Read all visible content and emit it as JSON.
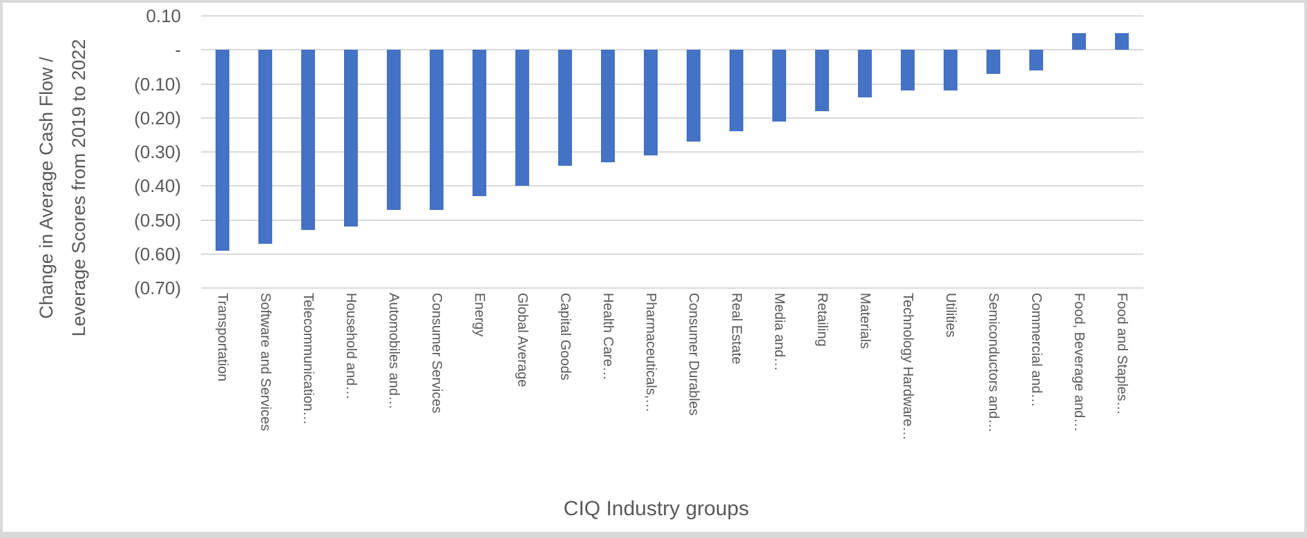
{
  "chart_data": {
    "type": "bar",
    "title": "",
    "xlabel": "CIQ Industry groups",
    "ylabel": "Change in Average Cash Flow / Leverage Scores from 2019 to 2022",
    "ylabel_line1": "Change in Average Cash Flow /",
    "ylabel_line2": "Leverage Scores from 2019 to 2022",
    "categories": [
      "Transportation",
      "Software and Services",
      "Telecommunication…",
      "Household and…",
      "Automobiles and…",
      "Consumer Services",
      "Energy",
      "Global Average",
      "Capital Goods",
      "Health Care…",
      "Pharmaceuticals,…",
      "Consumer Durables",
      "Real Estate",
      "Media and…",
      "Retailing",
      "Materials",
      "Technology Hardware…",
      "Utilities",
      "Semiconductors and…",
      "Commercial and…",
      "Food, Beverage and…",
      "Food and Staples…"
    ],
    "values": [
      -0.59,
      -0.57,
      -0.53,
      -0.52,
      -0.47,
      -0.47,
      -0.43,
      -0.4,
      -0.34,
      -0.33,
      -0.31,
      -0.27,
      -0.24,
      -0.21,
      -0.18,
      -0.14,
      -0.12,
      -0.12,
      -0.07,
      -0.06,
      0.05,
      0.05
    ],
    "ylim": [
      -0.7,
      0.1
    ],
    "y_ticks": [
      {
        "value": 0.1,
        "label": "0.10"
      },
      {
        "value": 0.0,
        "label": "-"
      },
      {
        "value": -0.1,
        "label": "(0.10)"
      },
      {
        "value": -0.2,
        "label": "(0.20)"
      },
      {
        "value": -0.3,
        "label": "(0.30)"
      },
      {
        "value": -0.4,
        "label": "(0.40)"
      },
      {
        "value": -0.5,
        "label": "(0.50)"
      },
      {
        "value": -0.6,
        "label": "(0.60)"
      },
      {
        "value": -0.7,
        "label": "(0.70)"
      }
    ],
    "grid": true,
    "legend": false
  },
  "colors": {
    "bar": "#4472c4",
    "gridline": "#d9d9d9",
    "text": "#595959",
    "border": "#d9d9d9",
    "background": "#ffffff"
  }
}
